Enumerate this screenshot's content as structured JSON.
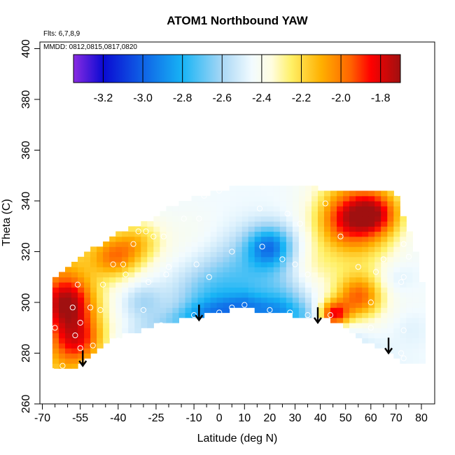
{
  "chart_data": {
    "type": "heatmap",
    "title": "ATOM1 Northbound YAW",
    "flights_label": "Flts: 6,7,8,9",
    "dates_label": "MMDD: 0812,0815,0817,0820",
    "xlabel": "Latitude (deg N)",
    "ylabel": "Theta (C)",
    "xlim": [
      -70,
      80
    ],
    "ylim": [
      260,
      400
    ],
    "x_ticks": [
      -70,
      -55,
      -40,
      -25,
      -10,
      0,
      10,
      20,
      30,
      40,
      50,
      60,
      70,
      80
    ],
    "x_minor_ticks": [
      -65,
      -60,
      -50,
      -45,
      -35,
      -30,
      -20,
      -15,
      -5,
      5,
      15,
      25,
      35,
      45,
      55,
      65,
      75
    ],
    "y_ticks": [
      260,
      280,
      300,
      320,
      340,
      360,
      380,
      400
    ],
    "colorbar": {
      "min": -3.35,
      "max": -1.7,
      "ticks": [
        -3.2,
        -3.0,
        -2.8,
        -2.6,
        -2.4,
        -2.2,
        -2.0,
        -1.8
      ],
      "tick_labels": [
        "-3.2",
        "-3.0",
        "-2.8",
        "-2.6",
        "-2.4",
        "-2.2",
        "-2.0",
        "-1.8"
      ],
      "stops": [
        {
          "v": -3.35,
          "c": "#8a2be2"
        },
        {
          "v": -3.2,
          "c": "#0a0ad2"
        },
        {
          "v": -3.0,
          "c": "#0f62e6"
        },
        {
          "v": -2.8,
          "c": "#17b4f5"
        },
        {
          "v": -2.6,
          "c": "#a8d7f5"
        },
        {
          "v": -2.45,
          "c": "#f2fbff"
        },
        {
          "v": -2.35,
          "c": "#fffde0"
        },
        {
          "v": -2.25,
          "c": "#fff066"
        },
        {
          "v": -2.1,
          "c": "#ffb000"
        },
        {
          "v": -1.95,
          "c": "#ff6200"
        },
        {
          "v": -1.85,
          "c": "#ff0000"
        },
        {
          "v": -1.7,
          "c": "#a01010"
        }
      ]
    },
    "domain": {
      "lower": [
        [
          -66,
          273
        ],
        [
          -55,
          275
        ],
        [
          -47,
          283
        ],
        [
          -38,
          287
        ],
        [
          -25,
          291
        ],
        [
          -10,
          294.5
        ],
        [
          0,
          296
        ],
        [
          10,
          298
        ],
        [
          20,
          296
        ],
        [
          30,
          295
        ],
        [
          38,
          294
        ],
        [
          45,
          293
        ],
        [
          55,
          286
        ],
        [
          65,
          282
        ],
        [
          72,
          277
        ],
        [
          80,
          276
        ]
      ],
      "upper": [
        [
          -66,
          309
        ],
        [
          -60,
          313
        ],
        [
          -50,
          320
        ],
        [
          -40,
          326
        ],
        [
          -30,
          330
        ],
        [
          -20,
          336
        ],
        [
          -10,
          340
        ],
        [
          0,
          343
        ],
        [
          10,
          345
        ],
        [
          20,
          346
        ],
        [
          30,
          346
        ],
        [
          40,
          344
        ],
        [
          50,
          344
        ],
        [
          62,
          344
        ],
        [
          70,
          342
        ],
        [
          74,
          330
        ],
        [
          78,
          318
        ],
        [
          80,
          307
        ]
      ]
    },
    "anomalies": [
      {
        "x": -60,
        "y": 300,
        "v": -1.95,
        "r": 12
      },
      {
        "x": -55,
        "y": 285,
        "v": -2.05,
        "r": 11
      },
      {
        "x": -42,
        "y": 318,
        "v": -2.05,
        "r": 10
      },
      {
        "x": -32,
        "y": 324,
        "v": -2.2,
        "r": 10
      },
      {
        "x": -30,
        "y": 300,
        "v": -2.6,
        "r": 8
      },
      {
        "x": -10,
        "y": 325,
        "v": -2.4,
        "r": 14
      },
      {
        "x": 20,
        "y": 322,
        "v": -2.88,
        "r": 9
      },
      {
        "x": 10,
        "y": 310,
        "v": -2.68,
        "r": 18
      },
      {
        "x": 25,
        "y": 300,
        "v": -2.6,
        "r": 10
      },
      {
        "x": 50,
        "y": 333,
        "v": -2.05,
        "r": 12
      },
      {
        "x": 62,
        "y": 335,
        "v": -2.0,
        "r": 10
      },
      {
        "x": 45,
        "y": 295,
        "v": -1.8,
        "r": 6
      },
      {
        "x": 55,
        "y": 302,
        "v": -2.05,
        "r": 9
      },
      {
        "x": 70,
        "y": 310,
        "v": -2.55,
        "r": 8
      },
      {
        "x": 75,
        "y": 290,
        "v": -2.5,
        "r": 9
      },
      {
        "x": -5,
        "y": 300,
        "v": -2.65,
        "r": 14
      },
      {
        "x": 38,
        "y": 315,
        "v": -2.35,
        "r": 10
      }
    ],
    "observations": [
      [
        -66,
        273
      ],
      [
        -62,
        275
      ],
      [
        -54,
        276
      ],
      [
        -48,
        277
      ],
      [
        -57,
        287
      ],
      [
        -50,
        283
      ],
      [
        -58,
        298
      ],
      [
        -51,
        298
      ],
      [
        -47,
        297
      ],
      [
        -56,
        307
      ],
      [
        -46,
        307
      ],
      [
        -42,
        315
      ],
      [
        -38,
        315
      ],
      [
        -37,
        311
      ],
      [
        -28,
        308
      ],
      [
        -21,
        311
      ],
      [
        -34,
        323
      ],
      [
        -32,
        328
      ],
      [
        -29,
        328
      ],
      [
        -26,
        326
      ],
      [
        -20,
        314
      ],
      [
        -22,
        326
      ],
      [
        -14,
        333
      ],
      [
        -6,
        342
      ],
      [
        -8,
        333
      ],
      [
        0,
        344
      ],
      [
        -4,
        310
      ],
      [
        -9,
        315
      ],
      [
        5,
        320
      ],
      [
        16,
        337
      ],
      [
        17,
        322
      ],
      [
        25,
        317
      ],
      [
        27,
        335
      ],
      [
        32,
        331
      ],
      [
        30,
        315
      ],
      [
        35,
        311
      ],
      [
        42,
        339
      ],
      [
        48,
        326
      ],
      [
        55,
        314
      ],
      [
        60,
        300
      ],
      [
        62,
        312
      ],
      [
        65,
        317
      ],
      [
        71,
        343
      ],
      [
        73,
        323
      ],
      [
        75,
        318
      ],
      [
        73,
        310
      ],
      [
        72,
        308
      ],
      [
        73,
        289
      ],
      [
        60,
        290
      ],
      [
        72,
        280
      ],
      [
        73,
        278
      ],
      [
        35,
        295
      ],
      [
        28,
        296
      ],
      [
        20,
        297
      ],
      [
        10,
        299
      ],
      [
        5,
        298
      ],
      [
        0,
        296
      ],
      [
        -10,
        295
      ],
      [
        -23,
        291
      ],
      [
        -30,
        297
      ],
      [
        -40,
        285
      ],
      [
        -55,
        282
      ],
      [
        44,
        295
      ],
      [
        -55,
        292
      ],
      [
        -65,
        290
      ]
    ],
    "arrows": [
      [
        -54,
        280
      ],
      [
        -8,
        298
      ],
      [
        39,
        297
      ],
      [
        67,
        285
      ]
    ]
  }
}
